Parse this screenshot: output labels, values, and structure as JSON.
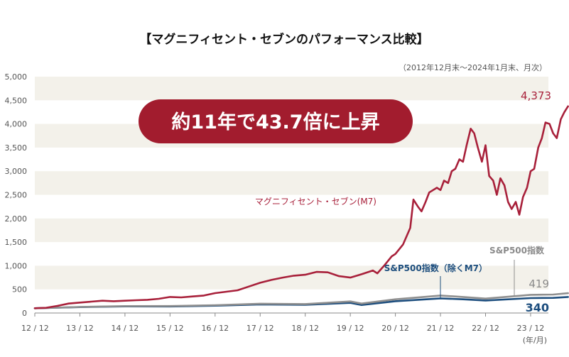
{
  "chart_data": {
    "type": "line",
    "title": "【マグニフィセント・セブンのパフォーマンス比較】",
    "subtitle": "（2012年12月末～2024年1月末、月次）",
    "x_unit": "(年/月)",
    "x_ticks": [
      "12 / 12",
      "13 / 12",
      "14 / 12",
      "15 / 12",
      "16 / 12",
      "17 / 12",
      "18 / 12",
      "19 / 12",
      "20 / 12",
      "21 / 12",
      "22 / 12",
      "23 / 12"
    ],
    "ylim": [
      0,
      5000
    ],
    "y_ticks": [
      "0",
      "500",
      "1,000",
      "1,500",
      "2,000",
      "2,500",
      "3,000",
      "3,500",
      "4,000",
      "4,500",
      "5,000"
    ],
    "y_tick_values": [
      0,
      500,
      1000,
      1500,
      2000,
      2500,
      3000,
      3500,
      4000,
      4500,
      5000
    ],
    "grid": "alternating horizontal bands",
    "legend": "inline labels",
    "badge": "約11年で43.7倍に上昇",
    "series": [
      {
        "name": "マグニフィセント・セブン(M7)",
        "color": "#a8203a",
        "end_label": "4,373",
        "points": [
          [
            0,
            100
          ],
          [
            0.25,
            110
          ],
          [
            0.5,
            150
          ],
          [
            0.75,
            200
          ],
          [
            1,
            220
          ],
          [
            1.25,
            240
          ],
          [
            1.5,
            260
          ],
          [
            1.75,
            250
          ],
          [
            2,
            260
          ],
          [
            2.25,
            270
          ],
          [
            2.5,
            280
          ],
          [
            2.75,
            300
          ],
          [
            3,
            340
          ],
          [
            3.25,
            330
          ],
          [
            3.5,
            350
          ],
          [
            3.75,
            370
          ],
          [
            4,
            420
          ],
          [
            4.25,
            450
          ],
          [
            4.5,
            480
          ],
          [
            4.75,
            560
          ],
          [
            5,
            640
          ],
          [
            5.25,
            700
          ],
          [
            5.5,
            750
          ],
          [
            5.75,
            790
          ],
          [
            6,
            810
          ],
          [
            6.25,
            870
          ],
          [
            6.5,
            860
          ],
          [
            6.75,
            780
          ],
          [
            7,
            750
          ],
          [
            7.25,
            820
          ],
          [
            7.5,
            900
          ],
          [
            7.6,
            840
          ],
          [
            7.75,
            1000
          ],
          [
            7.92,
            1200
          ],
          [
            8,
            1250
          ],
          [
            8.17,
            1450
          ],
          [
            8.33,
            1800
          ],
          [
            8.4,
            2400
          ],
          [
            8.5,
            2250
          ],
          [
            8.58,
            2150
          ],
          [
            8.67,
            2350
          ],
          [
            8.75,
            2550
          ],
          [
            8.92,
            2650
          ],
          [
            9,
            2600
          ],
          [
            9.08,
            2800
          ],
          [
            9.17,
            2750
          ],
          [
            9.25,
            3000
          ],
          [
            9.33,
            3050
          ],
          [
            9.42,
            3250
          ],
          [
            9.5,
            3200
          ],
          [
            9.58,
            3550
          ],
          [
            9.67,
            3900
          ],
          [
            9.75,
            3800
          ],
          [
            9.83,
            3500
          ],
          [
            9.92,
            3200
          ],
          [
            10,
            3550
          ],
          [
            10.08,
            2900
          ],
          [
            10.17,
            2800
          ],
          [
            10.25,
            2500
          ],
          [
            10.33,
            2850
          ],
          [
            10.42,
            2700
          ],
          [
            10.5,
            2350
          ],
          [
            10.58,
            2200
          ],
          [
            10.67,
            2350
          ],
          [
            10.75,
            2080
          ],
          [
            10.83,
            2450
          ],
          [
            10.92,
            2650
          ],
          [
            11,
            3000
          ],
          [
            11.08,
            3050
          ],
          [
            11.17,
            3500
          ],
          [
            11.25,
            3700
          ],
          [
            11.33,
            4030
          ],
          [
            11.42,
            4000
          ],
          [
            11.5,
            3800
          ],
          [
            11.58,
            3700
          ],
          [
            11.67,
            4100
          ],
          [
            11.75,
            4250
          ],
          [
            11.83,
            4373
          ]
        ]
      },
      {
        "name": "S&P500指数",
        "color": "#8f8f8f",
        "end_label": "419",
        "points": [
          [
            0,
            100
          ],
          [
            1,
            128
          ],
          [
            2,
            145
          ],
          [
            3,
            147
          ],
          [
            4,
            165
          ],
          [
            5,
            197
          ],
          [
            6,
            189
          ],
          [
            7,
            245
          ],
          [
            7.25,
            200
          ],
          [
            8,
            290
          ],
          [
            9,
            370
          ],
          [
            9.5,
            340
          ],
          [
            10,
            305
          ],
          [
            11,
            385
          ],
          [
            11.5,
            390
          ],
          [
            11.83,
            419
          ]
        ]
      },
      {
        "name": "S&P500指数（除くM7）",
        "color": "#1d4e7e",
        "end_label": "340",
        "points": [
          [
            0,
            100
          ],
          [
            1,
            125
          ],
          [
            2,
            140
          ],
          [
            3,
            138
          ],
          [
            4,
            155
          ],
          [
            5,
            182
          ],
          [
            6,
            172
          ],
          [
            7,
            215
          ],
          [
            7.25,
            170
          ],
          [
            8,
            250
          ],
          [
            9,
            310
          ],
          [
            9.5,
            290
          ],
          [
            10,
            265
          ],
          [
            11,
            315
          ],
          [
            11.5,
            320
          ],
          [
            11.83,
            340
          ]
        ]
      }
    ]
  }
}
